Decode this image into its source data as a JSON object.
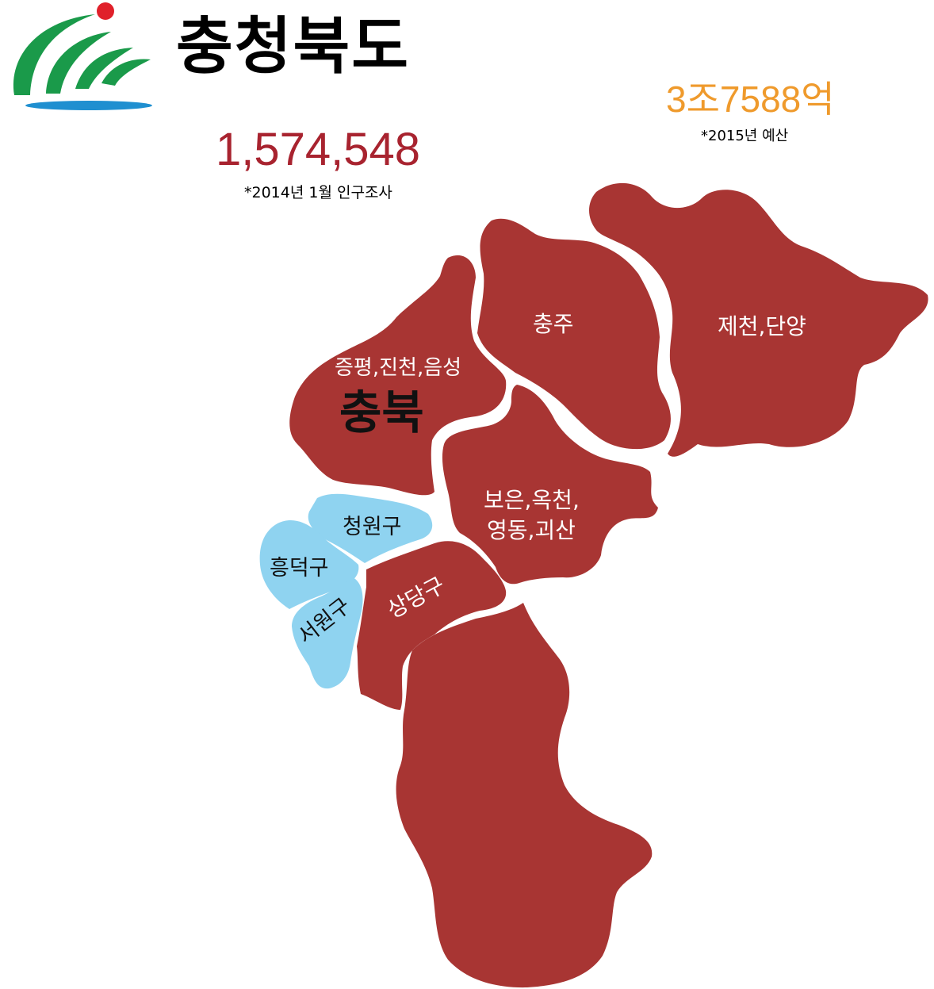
{
  "header": {
    "title": "충청북도",
    "population": "1,574,548",
    "population_note": "*2014년 1월 인구조사",
    "budget": "3조7588억",
    "budget_note": "*2015년 예산"
  },
  "logo": {
    "icon": "chungbuk-emblem-icon"
  },
  "colors": {
    "region_fill": "#a83533",
    "district_fill": "#8fd3f0",
    "population_text": "#a8232f",
    "budget_text": "#ef9a2c",
    "logo_green": "#1a9a4a",
    "logo_red": "#e0202a",
    "logo_blue": "#1f8fd0"
  },
  "map": {
    "regions": {
      "chungju": "충주",
      "jecheon_danyang": "제천,단양",
      "jeungpyeong": "증평,진천,음성",
      "center_label": "충북",
      "boeun_line1": "보은,옥천,",
      "boeun_line2": "영동,괴산",
      "sangdang": "상당구"
    },
    "districts": {
      "cheongwon": "청원구",
      "heungdeok": "흥덕구",
      "seowon": "서원구"
    }
  }
}
